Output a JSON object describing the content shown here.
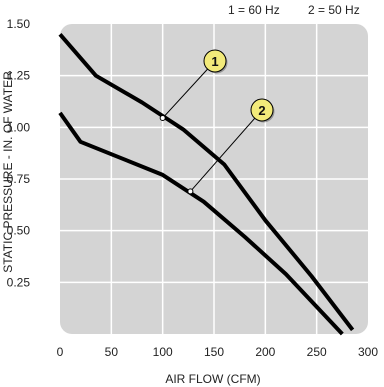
{
  "chart_data": {
    "type": "line",
    "title": "",
    "xlabel": "AIR FLOW (CFM)",
    "ylabel": "STATIC PRESSURE - IN. OF WATER",
    "xlim": [
      0,
      300
    ],
    "ylim": [
      0,
      1.5
    ],
    "x_ticks": [
      "0",
      "50",
      "100",
      "150",
      "200",
      "250",
      "300"
    ],
    "y_ticks": [
      "0.25",
      "0.50",
      "0.75",
      "1.00",
      "1.25",
      "1.50"
    ],
    "legend": [
      "1 = 60 Hz",
      "2 = 50 Hz"
    ],
    "legend_position": "top-right",
    "grid": true,
    "plot_background": "#d4d4d4",
    "grid_color": "#ffffff",
    "line_color": "#000000",
    "marker_fill": "#f2ea7a",
    "series": [
      {
        "label": "1",
        "x": [
          0,
          35,
          80,
          120,
          160,
          200,
          245,
          285
        ],
        "y": [
          1.45,
          1.25,
          1.12,
          0.99,
          0.82,
          0.55,
          0.28,
          0.02
        ],
        "callout_point": [
          100,
          1.045
        ]
      },
      {
        "label": "2",
        "x": [
          0,
          20,
          60,
          100,
          140,
          180,
          220,
          275
        ],
        "y": [
          1.07,
          0.93,
          0.85,
          0.77,
          0.64,
          0.47,
          0.29,
          0.0
        ],
        "callout_point": [
          127,
          0.69
        ]
      }
    ]
  }
}
